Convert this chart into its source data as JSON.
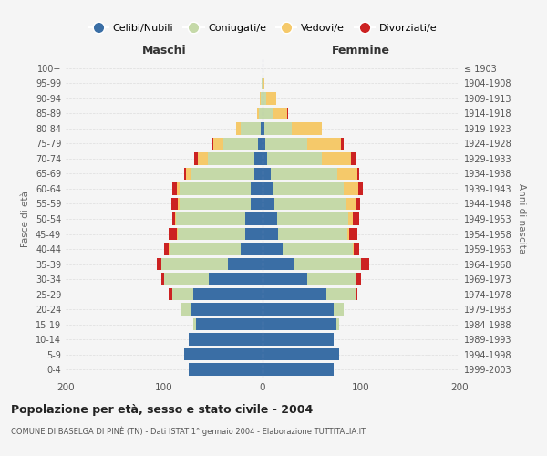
{
  "age_groups": [
    "0-4",
    "5-9",
    "10-14",
    "15-19",
    "20-24",
    "25-29",
    "30-34",
    "35-39",
    "40-44",
    "45-49",
    "50-54",
    "55-59",
    "60-64",
    "65-69",
    "70-74",
    "75-79",
    "80-84",
    "85-89",
    "90-94",
    "95-99",
    "100+"
  ],
  "birth_years": [
    "1999-2003",
    "1994-1998",
    "1989-1993",
    "1984-1988",
    "1979-1983",
    "1974-1978",
    "1969-1973",
    "1964-1968",
    "1959-1963",
    "1954-1958",
    "1949-1953",
    "1944-1948",
    "1939-1943",
    "1934-1938",
    "1929-1933",
    "1924-1928",
    "1919-1923",
    "1914-1918",
    "1909-1913",
    "1904-1908",
    "≤ 1903"
  ],
  "colors": {
    "celibi": "#3a6ea5",
    "coniugati": "#c5d9a8",
    "vedovi": "#f5c96a",
    "divorziati": "#cc2222"
  },
  "maschi": {
    "celibi": [
      75,
      80,
      75,
      68,
      72,
      70,
      55,
      35,
      22,
      18,
      18,
      12,
      12,
      8,
      8,
      5,
      2,
      0,
      0,
      0,
      0
    ],
    "coniugati": [
      0,
      0,
      0,
      2,
      10,
      22,
      45,
      68,
      72,
      68,
      70,
      72,
      72,
      65,
      48,
      35,
      20,
      4,
      2,
      1,
      0
    ],
    "vedovi": [
      0,
      0,
      0,
      0,
      0,
      0,
      0,
      0,
      1,
      1,
      1,
      2,
      3,
      5,
      10,
      10,
      5,
      2,
      1,
      0,
      0
    ],
    "divorziati": [
      0,
      0,
      0,
      0,
      1,
      3,
      3,
      4,
      5,
      8,
      3,
      7,
      5,
      2,
      3,
      2,
      0,
      0,
      0,
      0,
      0
    ]
  },
  "femmine": {
    "celibi": [
      72,
      78,
      72,
      75,
      72,
      65,
      45,
      32,
      20,
      16,
      15,
      12,
      10,
      8,
      5,
      3,
      2,
      0,
      0,
      0,
      0
    ],
    "coniugati": [
      0,
      0,
      0,
      3,
      10,
      30,
      50,
      68,
      72,
      70,
      72,
      72,
      72,
      68,
      55,
      42,
      28,
      10,
      4,
      0,
      0
    ],
    "vedovi": [
      0,
      0,
      0,
      0,
      0,
      0,
      0,
      0,
      1,
      2,
      5,
      10,
      15,
      20,
      30,
      35,
      30,
      15,
      10,
      2,
      1
    ],
    "divorziati": [
      0,
      0,
      0,
      0,
      0,
      1,
      5,
      8,
      5,
      8,
      6,
      5,
      5,
      2,
      5,
      2,
      0,
      1,
      0,
      0,
      0
    ]
  },
  "title": "Popolazione per età, sesso e stato civile - 2004",
  "subtitle": "COMUNE DI BASELGA DI PINÈ (TN) - Dati ISTAT 1° gennaio 2004 - Elaborazione TUTTITALIA.IT",
  "xlabel_left": "Maschi",
  "xlabel_right": "Femmine",
  "ylabel_left": "Fasce di età",
  "ylabel_right": "Anni di nascita",
  "xlim": 200,
  "legend_labels": [
    "Celibi/Nubili",
    "Coniugati/e",
    "Vedovi/e",
    "Divorziati/e"
  ],
  "background_color": "#f5f5f5",
  "plot_bg_color": "#f5f5f5",
  "grid_color": "#dddddd"
}
